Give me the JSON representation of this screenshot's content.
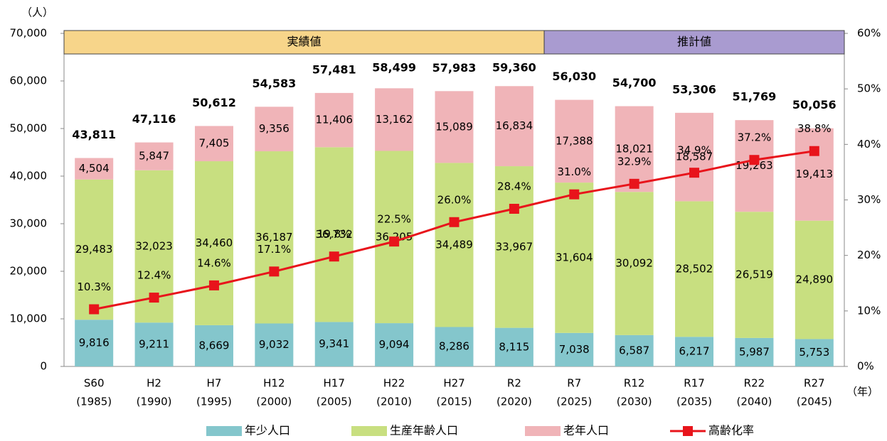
{
  "chart_data": {
    "type": "bar",
    "stacked": true,
    "y_unit_label": "（人）",
    "x_unit_label": "（年）",
    "periods": [
      "実績値",
      "推計値"
    ],
    "categories": [
      "S60",
      "H2",
      "H7",
      "H12",
      "H17",
      "H22",
      "H27",
      "R2",
      "R7",
      "R12",
      "R17",
      "R22",
      "R27"
    ],
    "category_years": [
      "(1985)",
      "(1990)",
      "(1995)",
      "(2000)",
      "(2005)",
      "(2010)",
      "(2015)",
      "(2020)",
      "(2025)",
      "(2030)",
      "(2035)",
      "(2040)",
      "(2045)"
    ],
    "series": [
      {
        "name": "年少人口",
        "color": "#84c6cc",
        "values": [
          9816,
          9211,
          8669,
          9032,
          9341,
          9094,
          8286,
          8115,
          7038,
          6587,
          6217,
          5987,
          5753
        ],
        "value_labels": [
          "9,816",
          "9,211",
          "8,669",
          "9,032",
          "9,341",
          "9,094",
          "8,286",
          "8,115",
          "7,038",
          "6,587",
          "6,217",
          "5,987",
          "5,753"
        ]
      },
      {
        "name": "生産年齢人口",
        "color": "#c8df80",
        "values": [
          29483,
          32023,
          34460,
          36187,
          36732,
          36205,
          34489,
          33967,
          31604,
          30092,
          28502,
          26519,
          24890
        ],
        "value_labels": [
          "29,483",
          "32,023",
          "34,460",
          "36,187",
          "36,732",
          "36,205",
          "34,489",
          "33,967",
          "31,604",
          "30,092",
          "28,502",
          "26,519",
          "24,890"
        ]
      },
      {
        "name": "老年人口",
        "color": "#f0b4b8",
        "values": [
          4504,
          5847,
          7405,
          9356,
          11406,
          13162,
          15089,
          16834,
          17388,
          18021,
          18587,
          19263,
          19413
        ],
        "value_labels": [
          "4,504",
          "5,847",
          "7,405",
          "9,356",
          "11,406",
          "13,162",
          "15,089",
          "16,834",
          "17,388",
          "18,021",
          "18,587",
          "19,263",
          "19,413"
        ]
      },
      {
        "name": "高齢化率",
        "type": "line",
        "axis": "y2",
        "color": "#e8141b",
        "values": [
          10.3,
          12.4,
          14.6,
          17.1,
          19.8,
          22.5,
          26.0,
          28.4,
          31.0,
          32.9,
          34.9,
          37.2,
          38.8
        ],
        "value_labels": [
          "10.3%",
          "12.4%",
          "14.6%",
          "17.1%",
          "19.8%",
          "22.5%",
          "26.0%",
          "28.4%",
          "31.0%",
          "32.9%",
          "34.9%",
          "37.2%",
          "38.8%"
        ]
      }
    ],
    "totals": [
      43811,
      47116,
      50612,
      54583,
      57481,
      58499,
      57983,
      59360,
      56030,
      54700,
      53306,
      51769,
      50056
    ],
    "total_labels": [
      "43,811",
      "47,116",
      "50,612",
      "54,583",
      "57,481",
      "58,499",
      "57,983",
      "59,360",
      "56,030",
      "54,700",
      "53,306",
      "51,769",
      "50,056"
    ],
    "ylim": [
      0,
      70000
    ],
    "yticks": [
      0,
      {
        "value": 10000,
        "label": "10,000"
      },
      {
        "value": 20000,
        "label": "20,000"
      },
      {
        "value": 30000,
        "label": "30,000"
      },
      {
        "value": 40000,
        "label": "40,000"
      },
      {
        "value": 50000,
        "label": "50,000"
      },
      {
        "value": 60000,
        "label": "60,000"
      },
      {
        "value": 70000,
        "label": "70,000"
      }
    ],
    "y2lim": [
      0,
      60
    ],
    "y2ticks": [
      {
        "value": 0,
        "label": "0%"
      },
      {
        "value": 10,
        "label": "10%"
      },
      {
        "value": 20,
        "label": "20%"
      },
      {
        "value": 30,
        "label": "30%"
      },
      {
        "value": 40,
        "label": "40%"
      },
      {
        "value": 50,
        "label": "50%"
      },
      {
        "value": 60,
        "label": "60%"
      }
    ],
    "legend": "bottom",
    "grid": false
  }
}
